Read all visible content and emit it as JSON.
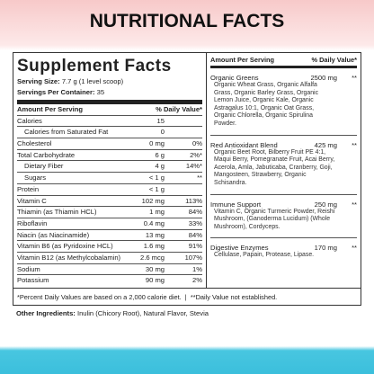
{
  "header": {
    "title": "NUTRITIONAL FACTS"
  },
  "facts": {
    "title": "Supplement Facts",
    "serving_size_label": "Serving Size:",
    "serving_size": "7.7 g (1 level scoop)",
    "servings_label": "Servings Per Container:",
    "servings": "35",
    "column_amount": "Amount Per Serving",
    "column_dv": "% Daily Value*",
    "rows": [
      {
        "name": "Calories",
        "amount": "15",
        "dv": ""
      },
      {
        "name": "Calories from Saturated Fat",
        "amount": "0",
        "dv": "",
        "indent": true
      },
      {
        "name": "Cholesterol",
        "amount": "0 mg",
        "dv": "0%"
      },
      {
        "name": "Total Carbohydrate",
        "amount": "6 g",
        "dv": "2%*"
      },
      {
        "name": "Dietary Fiber",
        "amount": "4 g",
        "dv": "14%*",
        "indent": true
      },
      {
        "name": "Sugars",
        "amount": "< 1 g",
        "dv": "**",
        "indent": true
      },
      {
        "name": "Protein",
        "amount": "< 1 g",
        "dv": ""
      },
      {
        "name": "Vitamin C",
        "amount": "102 mg",
        "dv": "113%"
      },
      {
        "name": "Thiamin (as Thiamin HCL)",
        "amount": "1 mg",
        "dv": "84%"
      },
      {
        "name": "Riboflavin",
        "amount": "0.4 mg",
        "dv": "33%"
      },
      {
        "name": "Niacin (as Niacinamide)",
        "amount": "13 mg",
        "dv": "84%"
      },
      {
        "name": "Vitamin B6 (as Pyridoxine HCL)",
        "amount": "1.6 mg",
        "dv": "91%"
      },
      {
        "name": "Vitamin B12 (as Methylcobalamin)",
        "amount": "2.6 mcg",
        "dv": "107%"
      },
      {
        "name": "Sodium",
        "amount": "30 mg",
        "dv": "1%"
      },
      {
        "name": "Potassium",
        "amount": "90 mg",
        "dv": "2%"
      }
    ]
  },
  "blends": {
    "column_amount": "Amount Per Serving",
    "column_dv": "% Daily Value*",
    "items": [
      {
        "name": "Organic Greens",
        "amount": "2500 mg",
        "dv": "**",
        "ingredients": "Organic Wheat Grass, Organic Alfalfa Grass, Organic Barley Grass, Organic Lemon Juice, Organic Kale, Organic Astragalus 10:1, Organic Oat Grass, Organic Chlorella, Organic Spirulina Powder."
      },
      {
        "name": "Red Antioxidant Blend",
        "amount": "425 mg",
        "dv": "**",
        "ingredients": "Organic Beet Root, Bilberry Fruit PE 4:1, Maqui Berry, Pomegranate Fruit, Acai Berry, Acerola, Amla, Jabuticaba, Cranberry, Goji, Mangosteen, Strawberry, Organic Schisandra."
      },
      {
        "name": "Immune Support",
        "amount": "250 mg",
        "dv": "**",
        "ingredients": "Vitamin C, Organic Turmeric Powder, Reishi Mushroom, (Ganoderma Lucidum) (Whole Mushroom), Cordyceps."
      },
      {
        "name": "Digestive Enzymes",
        "amount": "170 mg",
        "dv": "**",
        "ingredients": "Cellulase, Papain, Protease, Lipase."
      }
    ]
  },
  "footnote": "*Percent Daily Values are based on a 2,000 calorie diet.  |  **Daily Value not established.",
  "other_label": "Other Ingredients:",
  "other": "Inulin (Chicory Root), Natural Flavor, Stevia"
}
